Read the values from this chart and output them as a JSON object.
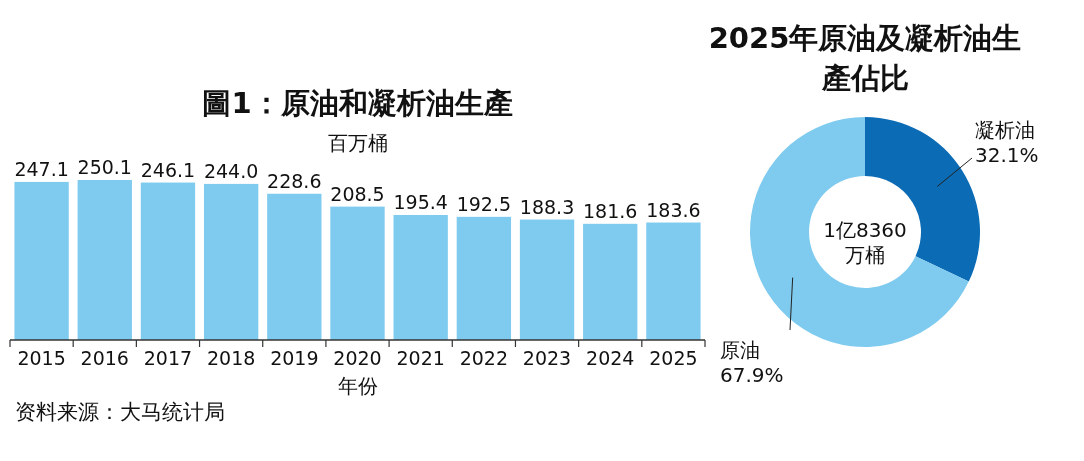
{
  "chart_data": [
    {
      "type": "bar",
      "title": "圖1：原油和凝析油生產",
      "ylabel": "百万桶",
      "xlabel": "年份",
      "categories": [
        "2015",
        "2016",
        "2017",
        "2018",
        "2019",
        "2020",
        "2021",
        "2022",
        "2023",
        "2024",
        "2025"
      ],
      "values": [
        247.1,
        250.1,
        246.1,
        244.0,
        228.6,
        208.5,
        195.4,
        192.5,
        188.3,
        181.6,
        183.6
      ],
      "value_labels": [
        "247.1",
        "250.1",
        "246.1",
        "244.0",
        "228.6",
        "208.5",
        "195.4",
        "192.5",
        "188.3",
        "181.6",
        "183.6"
      ],
      "color": "#7fcbef",
      "annotations": [
        "资料来源：大马统计局"
      ]
    },
    {
      "type": "donut",
      "title": "2025年原油及凝析油生產佔比",
      "categories": [
        "凝析油",
        "原油"
      ],
      "values": [
        32.1,
        67.9
      ],
      "value_labels": [
        "32.1%",
        "67.9%"
      ],
      "colors": [
        "#0b6bb5",
        "#7fcbef"
      ],
      "annotations": [
        "1亿8360万桶"
      ]
    }
  ]
}
